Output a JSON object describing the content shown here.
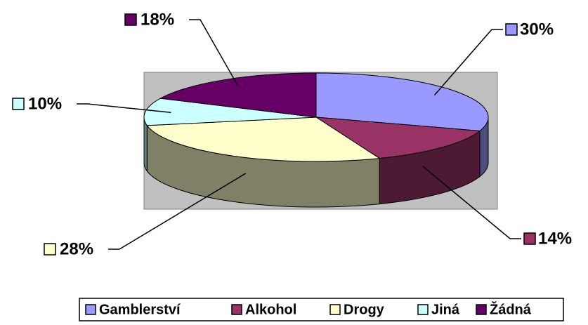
{
  "chart_data": {
    "type": "pie",
    "categories": [
      "Gamblerství",
      "Alkohol",
      "Drogy",
      "Jiná",
      "Žádná"
    ],
    "values": [
      30,
      14,
      28,
      10,
      18
    ],
    "value_labels": [
      "30%",
      "14%",
      "28%",
      "10%",
      "18%"
    ],
    "colors": [
      "#9999ff",
      "#993366",
      "#ffffcc",
      "#ccffff",
      "#660066"
    ],
    "legend": "bottom"
  }
}
